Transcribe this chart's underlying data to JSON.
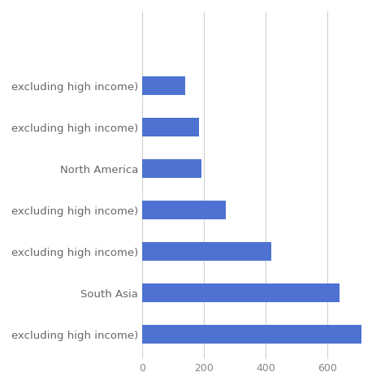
{
  "categories": [
    "excluding high income)",
    "South Asia",
    "excluding high income)",
    "excluding high income)",
    "North America",
    "excluding high income)",
    "excluding high income)"
  ],
  "values": [
    710,
    638,
    418,
    272,
    193,
    183,
    140
  ],
  "bar_color": "#4d72d1",
  "xlim": [
    0,
    750
  ],
  "xticks": [
    0,
    200,
    400,
    600
  ],
  "background_color": "#ffffff",
  "label_color": "#888888",
  "grid_color": "#d0d0d0",
  "bar_height": 0.45,
  "figsize": [
    4.74,
    4.74
  ],
  "dpi": 100,
  "tick_fontsize": 9,
  "label_fontsize": 9.5
}
